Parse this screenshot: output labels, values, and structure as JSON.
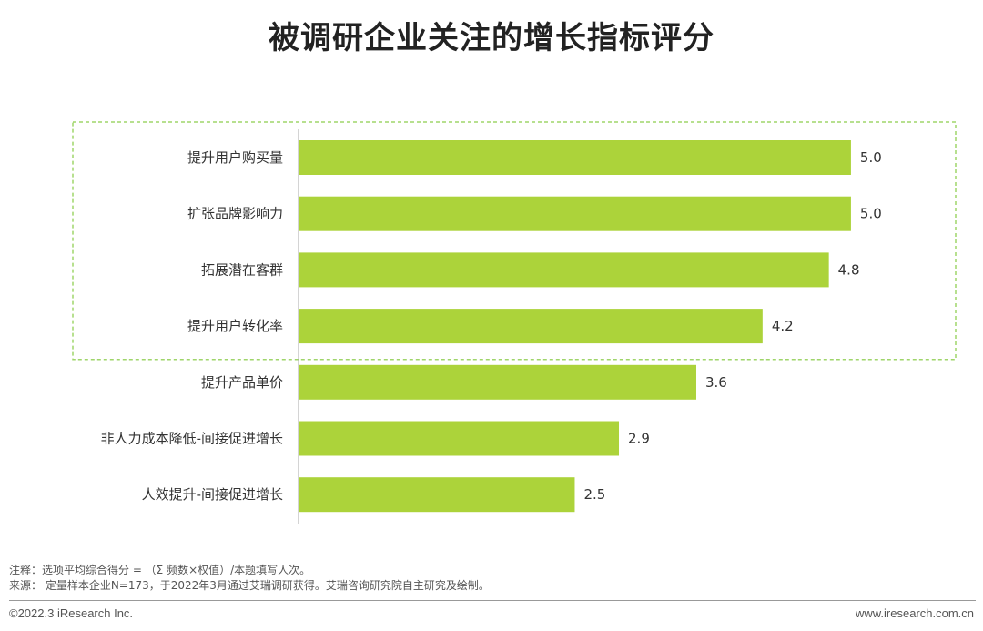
{
  "page": {
    "title": "被调研企业关注的增长指标评分",
    "footnote_1": "注释：选项平均综合得分 = （Σ 频数×权值）/本题填写人次。",
    "footnote_2": "来源：  定量样本企业N=173，于2022年3月通过艾瑞调研获得。艾瑞咨询研究院自主研究及绘制。",
    "copyright": "©2022.3 iResearch Inc.",
    "website": "www.iresearch.com.cn"
  },
  "colors": {
    "bar": "#acd33a",
    "highlight_border": "#9fd56a",
    "axis": "#aaaaaa"
  },
  "chart_data": {
    "type": "bar",
    "orientation": "horizontal",
    "categories": [
      "提升用户购买量",
      "扩张品牌影响力",
      "拓展潜在客群",
      "提升用户转化率",
      "提升产品单价",
      "非人力成本降低-间接促进增长",
      "人效提升-间接促进增长"
    ],
    "values": [
      5.0,
      5.0,
      4.8,
      4.2,
      3.6,
      2.9,
      2.5
    ],
    "value_labels": [
      "5.0",
      "5.0",
      "4.8",
      "4.2",
      "3.6",
      "2.9",
      "2.5"
    ],
    "highlighted_categories": 4,
    "xlim": [
      0,
      5.05
    ],
    "grid": false,
    "legend": "none"
  }
}
